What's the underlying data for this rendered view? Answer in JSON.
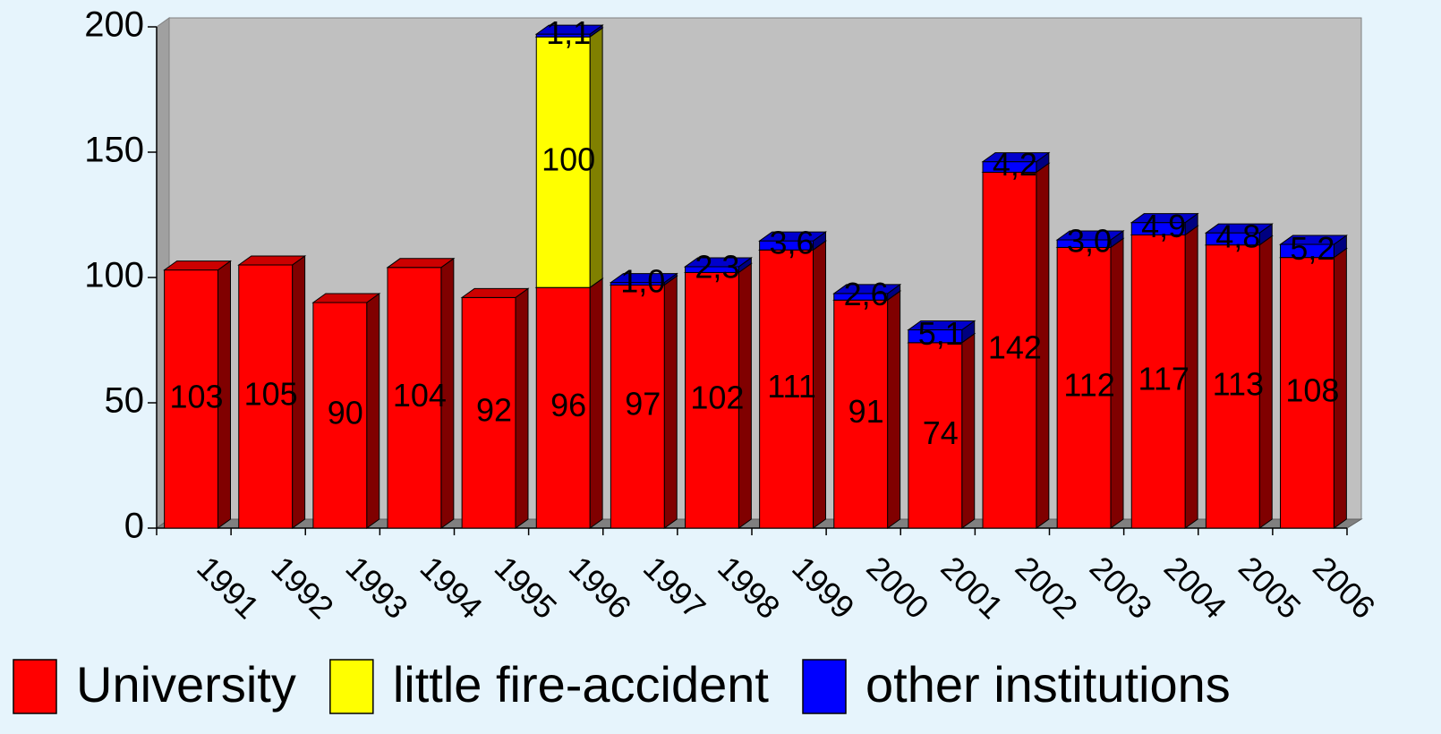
{
  "chart_data": {
    "type": "bar",
    "stacked": true,
    "categories": [
      "1991",
      "1992",
      "1993",
      "1994",
      "1995",
      "1996",
      "1997",
      "1998",
      "1999",
      "2000",
      "2001",
      "2002",
      "2003",
      "2004",
      "2005",
      "2006"
    ],
    "series": [
      {
        "name": "University",
        "color": "#ff0000",
        "values": [
          103,
          105,
          90,
          104,
          92,
          96,
          97,
          102,
          111,
          91,
          74,
          142,
          112,
          117,
          113,
          108
        ]
      },
      {
        "name": "little fire-accident",
        "color": "#ffff00",
        "values": [
          null,
          null,
          null,
          null,
          null,
          100,
          null,
          null,
          null,
          null,
          null,
          null,
          null,
          null,
          null,
          null
        ]
      },
      {
        "name": "other institutions",
        "color": "#0000ff",
        "values": [
          null,
          null,
          null,
          null,
          null,
          1.1,
          1.0,
          2.3,
          3.6,
          2.6,
          5.1,
          4.2,
          3.0,
          4.9,
          4.8,
          5.2
        ],
        "value_labels": [
          null,
          null,
          null,
          null,
          null,
          "1,1",
          "1,0",
          "2,3",
          "3,6",
          "2,6",
          "5,1",
          "4,2",
          "3,0",
          "4,9",
          "4,8",
          "5,2"
        ]
      }
    ],
    "ylim": [
      0,
      200
    ],
    "yticks": [
      0,
      50,
      100,
      150,
      200
    ],
    "legend": "bottom"
  }
}
